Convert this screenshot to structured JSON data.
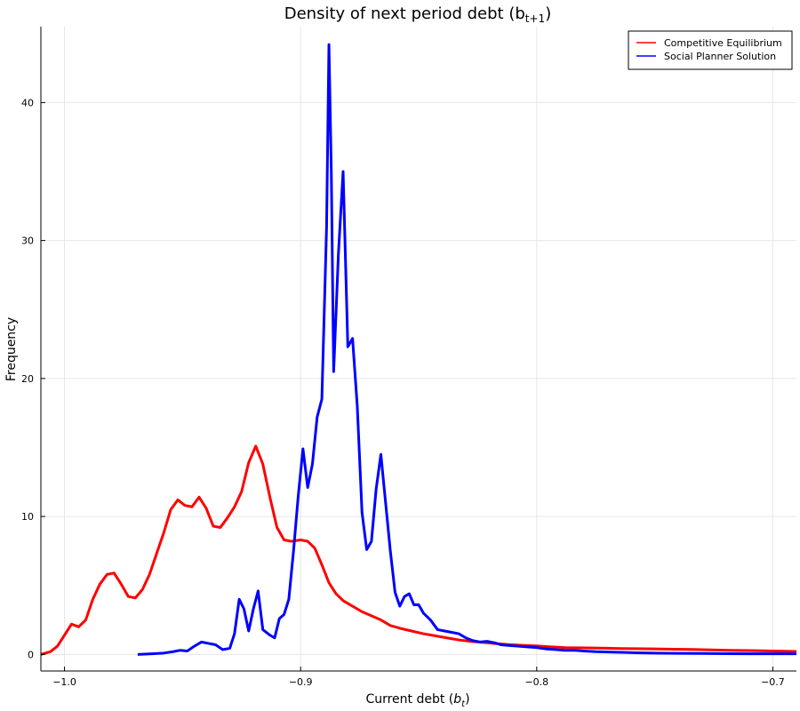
{
  "chart_data": {
    "type": "line",
    "title": "Density of next period debt (b",
    "title_sub": "t+1",
    "title_close": ")",
    "xlabel": "Current debt (",
    "xlabel_var": "b",
    "xlabel_sub": "t",
    "xlabel_close": ")",
    "ylabel": "Frequency",
    "xlim": [
      -1.01,
      -0.69
    ],
    "ylim": [
      -1.2,
      45.5
    ],
    "x_ticks": [
      -1.0,
      -0.9,
      -0.8,
      -0.7
    ],
    "x_tick_labels": [
      "−1.0",
      "−0.9",
      "−0.8",
      "−0.7"
    ],
    "y_ticks": [
      0,
      10,
      20,
      30,
      40
    ],
    "y_tick_labels": [
      "0",
      "10",
      "20",
      "30",
      "40"
    ],
    "grid": true,
    "legend_position": "top-right",
    "series": [
      {
        "name": "Competitive Equilibrium",
        "color": "#ff0000",
        "points": [
          [
            -1.01,
            0.0
          ],
          [
            -1.006,
            0.2
          ],
          [
            -1.003,
            0.6
          ],
          [
            -1.0,
            1.4
          ],
          [
            -0.997,
            2.2
          ],
          [
            -0.994,
            2.0
          ],
          [
            -0.991,
            2.5
          ],
          [
            -0.988,
            4.0
          ],
          [
            -0.985,
            5.1
          ],
          [
            -0.982,
            5.8
          ],
          [
            -0.979,
            5.9
          ],
          [
            -0.976,
            5.1
          ],
          [
            -0.973,
            4.2
          ],
          [
            -0.97,
            4.1
          ],
          [
            -0.967,
            4.7
          ],
          [
            -0.964,
            5.8
          ],
          [
            -0.961,
            7.3
          ],
          [
            -0.958,
            8.8
          ],
          [
            -0.955,
            10.5
          ],
          [
            -0.952,
            11.2
          ],
          [
            -0.949,
            10.8
          ],
          [
            -0.946,
            10.7
          ],
          [
            -0.943,
            11.4
          ],
          [
            -0.94,
            10.6
          ],
          [
            -0.937,
            9.3
          ],
          [
            -0.934,
            9.2
          ],
          [
            -0.931,
            9.9
          ],
          [
            -0.928,
            10.7
          ],
          [
            -0.925,
            11.8
          ],
          [
            -0.922,
            13.9
          ],
          [
            -0.919,
            15.1
          ],
          [
            -0.916,
            13.8
          ],
          [
            -0.913,
            11.4
          ],
          [
            -0.91,
            9.2
          ],
          [
            -0.907,
            8.3
          ],
          [
            -0.904,
            8.2
          ],
          [
            -0.9,
            8.3
          ],
          [
            -0.897,
            8.2
          ],
          [
            -0.894,
            7.7
          ],
          [
            -0.891,
            6.5
          ],
          [
            -0.888,
            5.2
          ],
          [
            -0.885,
            4.4
          ],
          [
            -0.882,
            3.9
          ],
          [
            -0.878,
            3.5
          ],
          [
            -0.874,
            3.1
          ],
          [
            -0.87,
            2.8
          ],
          [
            -0.866,
            2.5
          ],
          [
            -0.862,
            2.1
          ],
          [
            -0.858,
            1.9
          ],
          [
            -0.853,
            1.7
          ],
          [
            -0.848,
            1.5
          ],
          [
            -0.843,
            1.35
          ],
          [
            -0.838,
            1.2
          ],
          [
            -0.833,
            1.05
          ],
          [
            -0.828,
            0.95
          ],
          [
            -0.823,
            0.88
          ],
          [
            -0.818,
            0.8
          ],
          [
            -0.812,
            0.72
          ],
          [
            -0.806,
            0.66
          ],
          [
            -0.8,
            0.62
          ],
          [
            -0.794,
            0.55
          ],
          [
            -0.788,
            0.5
          ],
          [
            -0.782,
            0.48
          ],
          [
            -0.776,
            0.47
          ],
          [
            -0.77,
            0.45
          ],
          [
            -0.764,
            0.43
          ],
          [
            -0.758,
            0.42
          ],
          [
            -0.75,
            0.4
          ],
          [
            -0.742,
            0.38
          ],
          [
            -0.734,
            0.36
          ],
          [
            -0.726,
            0.33
          ],
          [
            -0.718,
            0.3
          ],
          [
            -0.71,
            0.28
          ],
          [
            -0.7,
            0.25
          ],
          [
            -0.69,
            0.22
          ]
        ]
      },
      {
        "name": "Social Planner Solution",
        "color": "#0000ff",
        "points": [
          [
            -0.969,
            0.0
          ],
          [
            -0.963,
            0.05
          ],
          [
            -0.958,
            0.1
          ],
          [
            -0.954,
            0.2
          ],
          [
            -0.951,
            0.3
          ],
          [
            -0.948,
            0.25
          ],
          [
            -0.945,
            0.6
          ],
          [
            -0.942,
            0.9
          ],
          [
            -0.939,
            0.8
          ],
          [
            -0.936,
            0.7
          ],
          [
            -0.933,
            0.35
          ],
          [
            -0.93,
            0.45
          ],
          [
            -0.928,
            1.5
          ],
          [
            -0.926,
            4.0
          ],
          [
            -0.924,
            3.3
          ],
          [
            -0.922,
            1.7
          ],
          [
            -0.92,
            3.3
          ],
          [
            -0.918,
            4.6
          ],
          [
            -0.916,
            1.8
          ],
          [
            -0.913,
            1.4
          ],
          [
            -0.911,
            1.2
          ],
          [
            -0.909,
            2.6
          ],
          [
            -0.907,
            2.9
          ],
          [
            -0.905,
            4.0
          ],
          [
            -0.903,
            7.5
          ],
          [
            -0.901,
            11.5
          ],
          [
            -0.899,
            14.9
          ],
          [
            -0.897,
            12.1
          ],
          [
            -0.895,
            13.8
          ],
          [
            -0.893,
            17.2
          ],
          [
            -0.891,
            18.5
          ],
          [
            -0.889,
            31.0
          ],
          [
            -0.888,
            44.2
          ],
          [
            -0.887,
            35.0
          ],
          [
            -0.886,
            20.5
          ],
          [
            -0.884,
            29.0
          ],
          [
            -0.882,
            35.0
          ],
          [
            -0.88,
            22.3
          ],
          [
            -0.878,
            22.9
          ],
          [
            -0.876,
            18.0
          ],
          [
            -0.874,
            10.3
          ],
          [
            -0.872,
            7.6
          ],
          [
            -0.87,
            8.2
          ],
          [
            -0.868,
            12.0
          ],
          [
            -0.866,
            14.5
          ],
          [
            -0.864,
            11.0
          ],
          [
            -0.862,
            7.5
          ],
          [
            -0.86,
            4.5
          ],
          [
            -0.858,
            3.5
          ],
          [
            -0.856,
            4.2
          ],
          [
            -0.854,
            4.4
          ],
          [
            -0.852,
            3.6
          ],
          [
            -0.85,
            3.6
          ],
          [
            -0.848,
            3.0
          ],
          [
            -0.845,
            2.5
          ],
          [
            -0.842,
            1.8
          ],
          [
            -0.839,
            1.7
          ],
          [
            -0.836,
            1.6
          ],
          [
            -0.833,
            1.5
          ],
          [
            -0.83,
            1.2
          ],
          [
            -0.827,
            1.0
          ],
          [
            -0.824,
            0.9
          ],
          [
            -0.821,
            0.95
          ],
          [
            -0.818,
            0.85
          ],
          [
            -0.815,
            0.7
          ],
          [
            -0.812,
            0.65
          ],
          [
            -0.808,
            0.6
          ],
          [
            -0.804,
            0.55
          ],
          [
            -0.8,
            0.5
          ],
          [
            -0.796,
            0.4
          ],
          [
            -0.792,
            0.35
          ],
          [
            -0.788,
            0.3
          ],
          [
            -0.784,
            0.3
          ],
          [
            -0.78,
            0.25
          ],
          [
            -0.775,
            0.2
          ],
          [
            -0.77,
            0.18
          ],
          [
            -0.764,
            0.15
          ],
          [
            -0.758,
            0.12
          ],
          [
            -0.75,
            0.1
          ],
          [
            -0.74,
            0.08
          ],
          [
            -0.73,
            0.07
          ],
          [
            -0.72,
            0.06
          ],
          [
            -0.71,
            0.05
          ],
          [
            -0.7,
            0.05
          ],
          [
            -0.69,
            0.05
          ]
        ]
      }
    ]
  }
}
